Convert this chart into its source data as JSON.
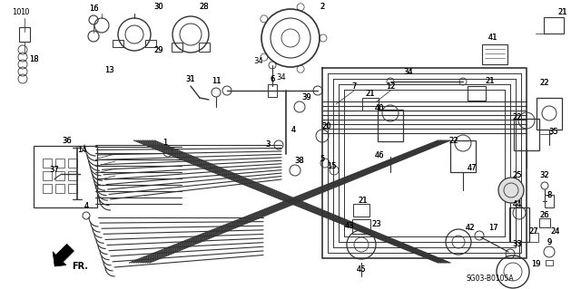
{
  "bg_color": "#ffffff",
  "diagram_code": "SG03-B0105A",
  "fig_width": 6.4,
  "fig_height": 3.19,
  "dpi": 100,
  "line_color": "#333333",
  "lw_tube": 0.9,
  "lw_thin": 0.55,
  "label_fontsize": 6.0
}
